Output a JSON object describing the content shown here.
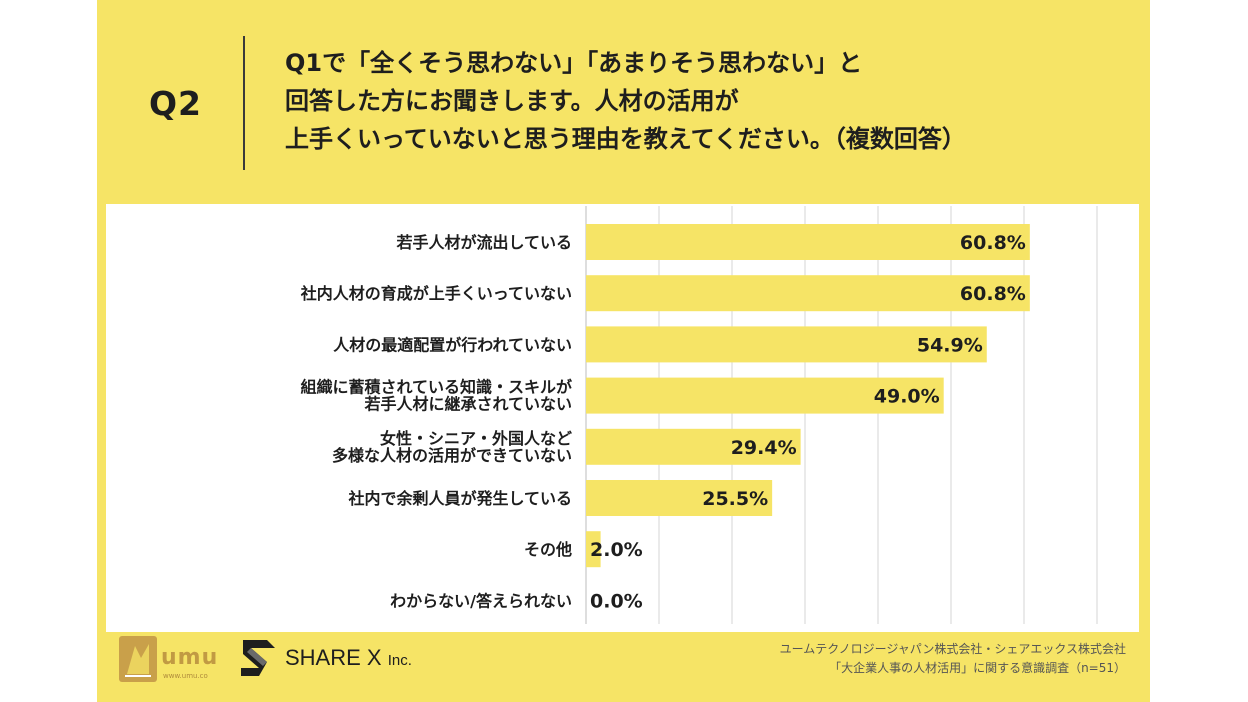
{
  "header": {
    "question_id": "Q2",
    "question_lines": [
      "Q1で「全くそう思わない」「あまりそう思わない」と",
      "回答した方にお聞きします。人材の活用が",
      "上手くいっていないと思う理由を教えてください。（複数回答）"
    ]
  },
  "chart_data": {
    "type": "bar",
    "orientation": "horizontal",
    "categories": [
      [
        "若手人材が流出している"
      ],
      [
        "社内人材の育成が上手くいっていない"
      ],
      [
        "人材の最適配置が行われていない"
      ],
      [
        "組織に蓄積されている知識・スキルが",
        "若手人材に継承されていない"
      ],
      [
        "女性・シニア・外国人など",
        "多様な人材の活用ができていない"
      ],
      [
        "社内で余剰人員が発生している"
      ],
      [
        "その他"
      ],
      [
        "わからない/答えられない"
      ]
    ],
    "values": [
      60.8,
      60.8,
      54.9,
      49.0,
      29.4,
      25.5,
      2.0,
      0.0
    ],
    "value_labels": [
      "60.8%",
      "60.8%",
      "54.9%",
      "49.0%",
      "29.4%",
      "25.5%",
      "2.0%",
      "0.0%"
    ],
    "xlim": [
      0,
      70
    ],
    "grid": true,
    "bar_color": "#f6e466"
  },
  "footer": {
    "logo1_text": "umu",
    "logo1_url": "www.umu.co",
    "logo2_text": "SHARE X",
    "logo2_suffix": "Inc.",
    "credit_line1": "ユームテクノロジージャパン株式会社・シェアエックス株式会社",
    "credit_line2": "「大企業人事の人材活用」に関する意識調査（n=51）"
  }
}
